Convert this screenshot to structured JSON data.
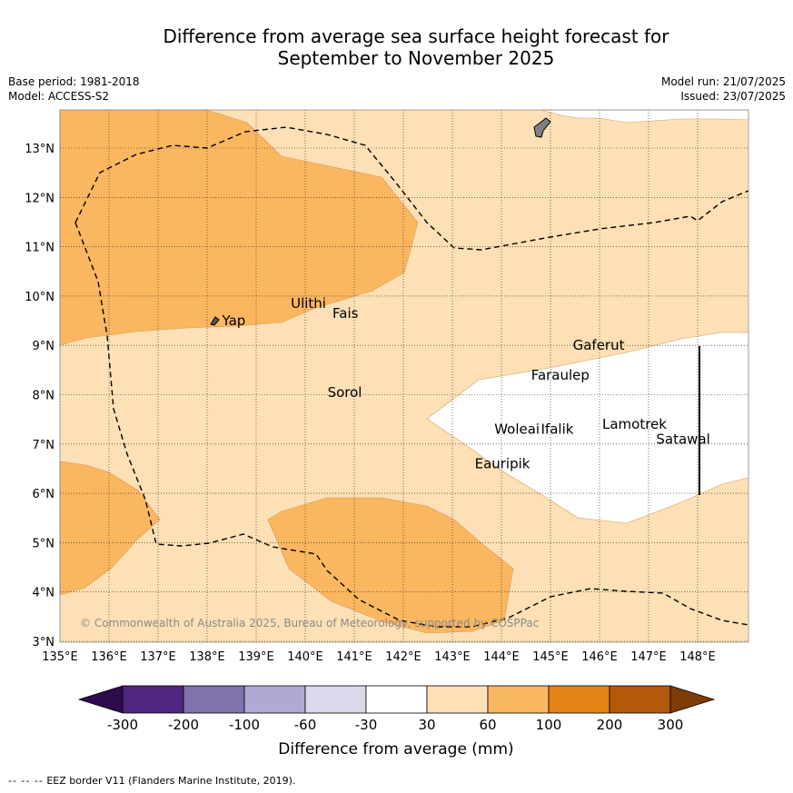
{
  "title_line1": "Difference from average sea surface height forecast for",
  "title_line2": "September to November 2025",
  "meta": {
    "base_period": "Base period: 1981-2018",
    "model": "Model: ACCESS-S2",
    "model_run": "Model run: 21/07/2025",
    "issued": "Issued: 23/07/2025"
  },
  "lon_ticks": [
    "135°E",
    "136°E",
    "137°E",
    "138°E",
    "139°E",
    "140°E",
    "141°E",
    "142°E",
    "143°E",
    "144°E",
    "145°E",
    "146°E",
    "147°E",
    "148°E"
  ],
  "lat_ticks": [
    "3°N",
    "4°N",
    "5°N",
    "6°N",
    "7°N",
    "8°N",
    "9°N",
    "10°N",
    "11°N",
    "12°N",
    "13°N"
  ],
  "places": [
    {
      "name": "Yap",
      "lon": 138.25,
      "lat": 9.5
    },
    {
      "name": "Ulithi",
      "lon": 139.65,
      "lat": 9.85
    },
    {
      "name": "Fais",
      "lon": 140.5,
      "lat": 9.65
    },
    {
      "name": "Sorol",
      "lon": 140.4,
      "lat": 8.05
    },
    {
      "name": "Gaferut",
      "lon": 145.4,
      "lat": 9.0
    },
    {
      "name": "Faraulep",
      "lon": 144.55,
      "lat": 8.4
    },
    {
      "name": "Woleai",
      "lon": 143.8,
      "lat": 7.3
    },
    {
      "name": "Ifalik",
      "lon": 144.75,
      "lat": 7.3
    },
    {
      "name": "Eauripik",
      "lon": 143.4,
      "lat": 6.6
    },
    {
      "name": "Lamotrek",
      "lon": 146.0,
      "lat": 7.4
    },
    {
      "name": "Satawal",
      "lon": 147.1,
      "lat": 7.1
    }
  ],
  "copyright": "© Commonwealth of Australia 2025, Bureau of Meteorology, supported by COSPPac",
  "colorbar": {
    "label": "Difference from average (mm)",
    "ticks": [
      "-300",
      "-200",
      "-100",
      "-60",
      "-30",
      "30",
      "60",
      "100",
      "200",
      "300"
    ],
    "colors": [
      "#52257f",
      "#8072ad",
      "#b0a9d3",
      "#d9d9eb",
      "#ffffff",
      "#fde0b5",
      "#fbb660",
      "#e28514",
      "#b3590a"
    ],
    "under_color": "#2d0b4d",
    "over_color": "#7f3b08"
  },
  "legend_note": "EEZ border V11 (Flanders Marine Institute, 2019).",
  "legend_note_dashes": "-- -- --"
}
